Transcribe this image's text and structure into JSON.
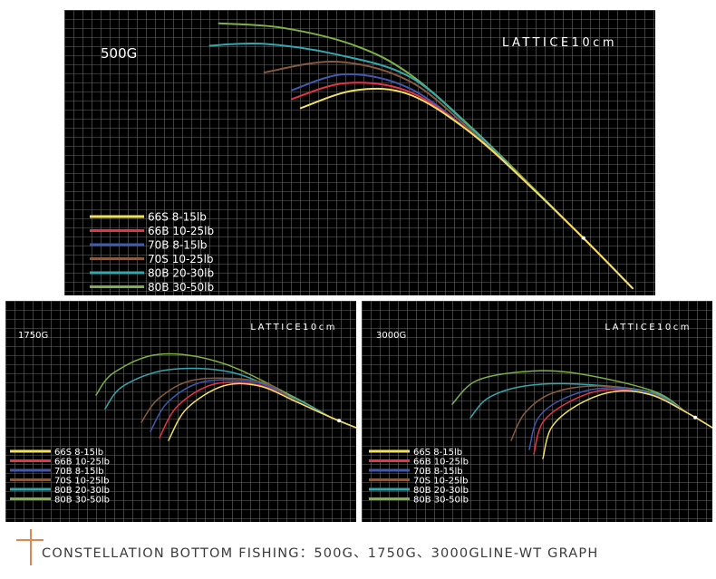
{
  "colors": {
    "background": "#000000",
    "grid": "#6b6b6b",
    "text": "#ffffff",
    "accent": "#e0874f"
  },
  "caption": "CONSTELLATION BOTTOM FISHING：500G、1750G、3000GLINE-WT GRAPH",
  "chart_data": [
    {
      "type": "line",
      "title": "500G",
      "annotation": "LATTICE10cm",
      "grid": true,
      "legend_position": "bottom-left",
      "xlim": [
        0,
        65
      ],
      "ylim": [
        0,
        32
      ],
      "series": [
        {
          "name": "66S 8-15lb",
          "color": "#f2e35c",
          "x": [
            26,
            32,
            38,
            45,
            52,
            58,
            62.5
          ],
          "y": [
            21,
            23,
            22.5,
            18,
            11.5,
            5.5,
            0.8
          ]
        },
        {
          "name": "66B 10-25lb",
          "color": "#e8334a",
          "x": [
            25,
            31,
            38,
            45,
            52,
            58,
            62.5
          ],
          "y": [
            22,
            23.8,
            22.8,
            18,
            11.5,
            5.5,
            0.8
          ]
        },
        {
          "name": "70B 8-15lb",
          "color": "#3f5ab0",
          "x": [
            25,
            31,
            38,
            45,
            52,
            58,
            62.5
          ],
          "y": [
            23,
            24.8,
            23.2,
            18,
            11.5,
            5.5,
            0.8
          ]
        },
        {
          "name": "70S 10-25lb",
          "color": "#8a5a3c",
          "x": [
            22,
            30,
            38,
            45,
            52,
            58,
            62.5
          ],
          "y": [
            25,
            26.2,
            24,
            18.2,
            11.5,
            5.5,
            0.8
          ]
        },
        {
          "name": "80B 20-30lb",
          "color": "#33a8b0",
          "x": [
            16,
            22,
            30,
            38,
            45,
            52,
            58,
            62.5
          ],
          "y": [
            28,
            28.2,
            27,
            24.5,
            18.5,
            11.5,
            5.5,
            0.8
          ]
        },
        {
          "name": "80B 30-50lb",
          "color": "#7cb342",
          "x": [
            17,
            24,
            32,
            38,
            45,
            52,
            58,
            62.5
          ],
          "y": [
            30.5,
            30,
            28,
            24.8,
            18.6,
            11.6,
            5.5,
            0.8
          ]
        }
      ]
    },
    {
      "type": "line",
      "title": "1750G",
      "annotation": "LATTICE10cm",
      "grid": true,
      "legend_position": "bottom-left",
      "xlim": [
        0,
        38.7
      ],
      "ylim": [
        0,
        24.4
      ],
      "series": [
        {
          "name": "66S 8-15lb",
          "color": "#f2e35c",
          "x": [
            18,
            20,
            24,
            28,
            32,
            36,
            38.7
          ],
          "y": [
            9,
            12.5,
            15,
            15,
            13.3,
            11.5,
            10.4
          ]
        },
        {
          "name": "66B 10-25lb",
          "color": "#e8334a",
          "x": [
            17,
            19,
            23,
            28,
            32,
            36,
            38.7
          ],
          "y": [
            9.3,
            12.8,
            15.2,
            15.1,
            13.3,
            11.5,
            10.4
          ]
        },
        {
          "name": "70B 8-15lb",
          "color": "#3f5ab0",
          "x": [
            16,
            18,
            22,
            28,
            32,
            36,
            38.7
          ],
          "y": [
            10,
            13.3,
            15.5,
            15.3,
            13.3,
            11.5,
            10.4
          ]
        },
        {
          "name": "70S 10-25lb",
          "color": "#8a5a3c",
          "x": [
            15,
            17,
            21,
            28,
            32,
            36,
            38.7
          ],
          "y": [
            11,
            13.7,
            15.7,
            15.5,
            13.4,
            11.5,
            10.4
          ]
        },
        {
          "name": "80B 20-30lb",
          "color": "#33a8b0",
          "x": [
            11,
            13,
            18,
            25,
            32,
            36,
            38.7
          ],
          "y": [
            12.5,
            15,
            16.8,
            16.5,
            13.6,
            11.5,
            10.4
          ]
        },
        {
          "name": "80B 30-50lb",
          "color": "#7cb342",
          "x": [
            10,
            12,
            17,
            24,
            32,
            36,
            38.7
          ],
          "y": [
            14,
            16.5,
            18.5,
            17.5,
            13.7,
            11.5,
            10.4
          ]
        }
      ]
    },
    {
      "type": "line",
      "title": "3000G",
      "annotation": "LATTICE10cm",
      "grid": true,
      "legend_position": "bottom-left",
      "xlim": [
        0,
        38.7
      ],
      "ylim": [
        0,
        24.4
      ],
      "series": [
        {
          "name": "66S 8-15lb",
          "color": "#f2e35c",
          "x": [
            20,
            21,
            24,
            28,
            32,
            36,
            38.7
          ],
          "y": [
            7,
            10.5,
            13,
            14.4,
            14,
            12,
            10.4
          ]
        },
        {
          "name": "66B 10-25lb",
          "color": "#e8334a",
          "x": [
            19,
            20,
            23,
            27,
            32,
            36,
            38.7
          ],
          "y": [
            7.5,
            11,
            13.3,
            14.6,
            14,
            12,
            10.4
          ]
        },
        {
          "name": "70B 8-15lb",
          "color": "#3f5ab0",
          "x": [
            18.5,
            19.5,
            22.5,
            27,
            32,
            36,
            38.7
          ],
          "y": [
            8,
            11.5,
            13.7,
            14.8,
            14.1,
            12,
            10.4
          ]
        },
        {
          "name": "70S 10-25lb",
          "color": "#8a5a3c",
          "x": [
            16.5,
            18,
            21,
            26,
            32,
            36,
            38.7
          ],
          "y": [
            9,
            12,
            14.2,
            15,
            14.2,
            12,
            10.4
          ]
        },
        {
          "name": "80B 20-30lb",
          "color": "#33a8b0",
          "x": [
            12,
            14,
            18,
            24,
            32,
            36,
            38.7
          ],
          "y": [
            11.5,
            13.7,
            15,
            15.2,
            14.3,
            12,
            10.4
          ]
        },
        {
          "name": "80B 30-50lb",
          "color": "#7cb342",
          "x": [
            10,
            12.5,
            17,
            23,
            32,
            36,
            38.7
          ],
          "y": [
            13,
            15.5,
            16.5,
            16.5,
            14.5,
            12,
            10.4
          ]
        }
      ]
    }
  ]
}
